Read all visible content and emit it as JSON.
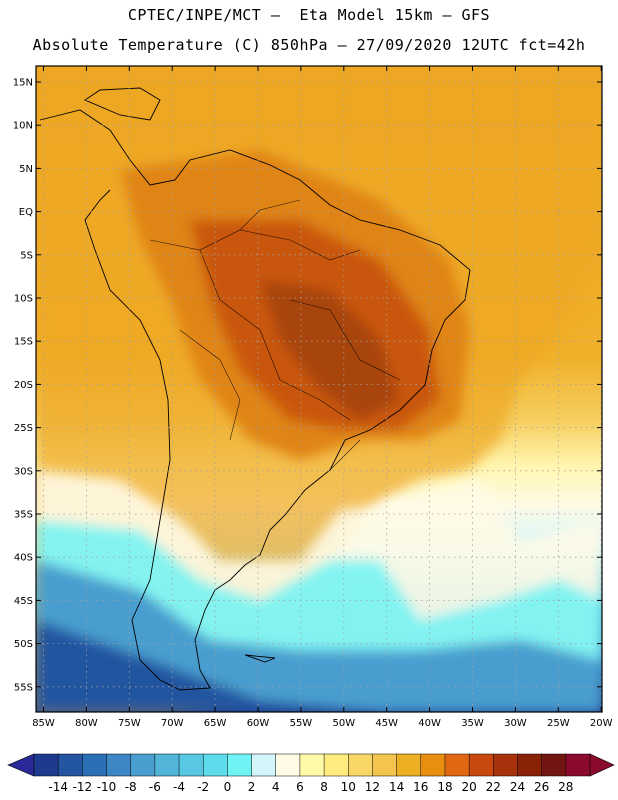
{
  "header": {
    "line1": "CPTEC/INPE/MCT –  Eta Model 15km – GFS",
    "line2": "Absolute Temperature (C) 850hPa – 27/09/2020 12UTC fct=42h"
  },
  "map": {
    "lat_labels": [
      "15N",
      "10N",
      "5N",
      "EQ",
      "5S",
      "10S",
      "15S",
      "20S",
      "25S",
      "30S",
      "35S",
      "40S",
      "45S",
      "50S",
      "55S"
    ],
    "lon_labels": [
      "85W",
      "80W",
      "75W",
      "70W",
      "65W",
      "60W",
      "55W",
      "50W",
      "45W",
      "40W",
      "35W",
      "30W",
      "25W",
      "20W"
    ]
  },
  "colorbar": {
    "labels": [
      "-14",
      "-12",
      "-10",
      "-8",
      "-6",
      "-4",
      "-2",
      "0",
      "2",
      "4",
      "6",
      "8",
      "10",
      "12",
      "14",
      "16",
      "18",
      "20",
      "22",
      "24",
      "26",
      "28"
    ],
    "colors": [
      "#1e3a8c",
      "#2455a0",
      "#2b6fb4",
      "#3d87c4",
      "#4a9ecf",
      "#52b4d9",
      "#57c7e2",
      "#5fdcec",
      "#6ff3f4",
      "#d3f6fb",
      "#fffbe6",
      "#fffaa8",
      "#ffeb7e",
      "#f8d766",
      "#f3c54f",
      "#eeb023",
      "#e88f12",
      "#e06812",
      "#c9480f",
      "#a8320b",
      "#8a2208",
      "#731612",
      "#8a0a2e"
    ],
    "low_arrow_color": "#2a2a9a",
    "high_arrow_color": "#8a0a2e"
  },
  "palette": {
    "warm_core": "#a84410",
    "orange": "#e08418",
    "amber": "#eea723",
    "yellow": "#f5d56a",
    "pale": "#fff6b0",
    "cream": "#fffbe6",
    "light_cyan": "#d3f6fb",
    "cyan": "#57c7e2",
    "mid_blue": "#3d87c4",
    "deep_blue": "#1e3a8c"
  }
}
